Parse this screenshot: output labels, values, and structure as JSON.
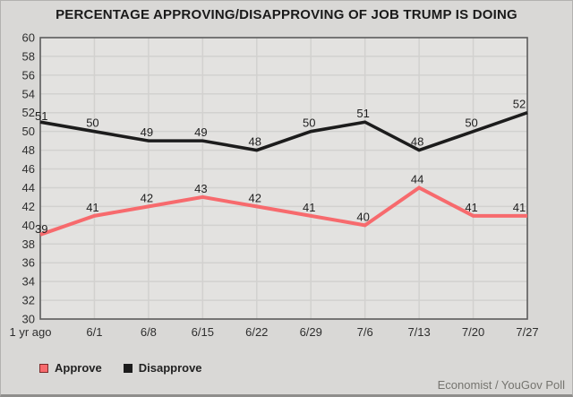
{
  "title": "PERCENTAGE APPROVING/DISAPPROVING OF JOB TRUMP IS DOING",
  "attribution": "Economist / YouGov Poll",
  "legend": [
    {
      "label": "Approve",
      "color": "#f76a6d",
      "border": "#7c2a2a"
    },
    {
      "label": "Disapprove",
      "color": "#1c1c1c",
      "border": "#1c1c1c"
    }
  ],
  "chart_data": {
    "type": "line",
    "title": "PERCENTAGE APPROVING/DISAPPROVING OF JOB TRUMP IS DOING",
    "categories": [
      "1 yr ago",
      "6/1",
      "6/8",
      "6/15",
      "6/22",
      "6/29",
      "7/6",
      "7/13",
      "7/20",
      "7/27"
    ],
    "series": [
      {
        "name": "Approve",
        "color": "#f76a6d",
        "values": [
          39,
          41,
          42,
          43,
          42,
          41,
          40,
          44,
          41,
          41
        ]
      },
      {
        "name": "Disapprove",
        "color": "#1c1c1c",
        "values": [
          51,
          50,
          49,
          49,
          48,
          50,
          51,
          48,
          50,
          52
        ]
      }
    ],
    "ylim": [
      30,
      60
    ],
    "ytick_step": 2,
    "grid": true,
    "data_labels": true,
    "legend_position": "bottom-left",
    "xlabel": "",
    "ylabel": ""
  },
  "colors": {
    "page_bg": "#d9d8d6",
    "plot_bg": "#e3e2e0",
    "gridline": "#d2d1cf",
    "plot_border": "#5c5c5c",
    "tick_label": "#2e2e2e",
    "data_label": "#1f1f1f",
    "attribution": "#75746f"
  }
}
